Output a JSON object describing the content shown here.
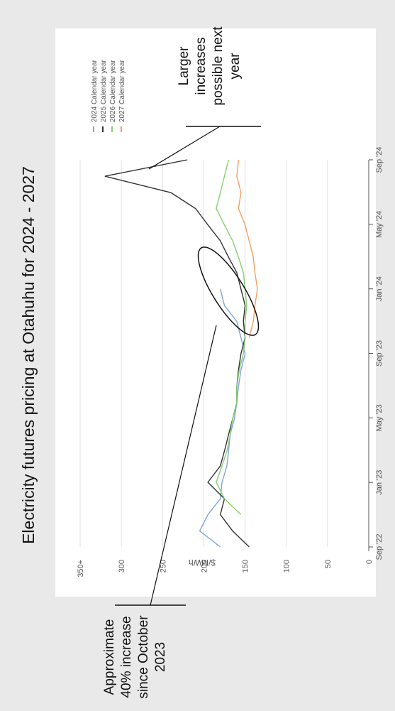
{
  "slide": {
    "title": "Electricity futures pricing at Otahuhu for 2024 - 2027",
    "annotation_right": [
      "Larger",
      "increases",
      "possible next",
      "year"
    ],
    "annotation_left": [
      "Approximate",
      "40% increase",
      "since October",
      "2023"
    ]
  },
  "chart_data": {
    "type": "line",
    "title": "",
    "xlabel": "",
    "ylabel": "$/MWh",
    "x_ticks": [
      "Sep '22",
      "Jan '23",
      "May '23",
      "Sep '23",
      "Jan '24",
      "May '24",
      "Sep '24"
    ],
    "y_ticks": [
      "0",
      "50",
      "100",
      "150",
      "200",
      "250",
      "300",
      "350+"
    ],
    "ylim": [
      0,
      350
    ],
    "xlim": [
      "2022-09-01",
      "2024-09-01"
    ],
    "legend_position": "top-right",
    "legend": [
      {
        "label": "2024 Calendar year",
        "color": "#7ea6d8"
      },
      {
        "label": "2025 Calendar year",
        "color": "#333333"
      },
      {
        "label": "2026 Calendar year",
        "color": "#86d06e"
      },
      {
        "label": "2027 Calendar year",
        "color": "#f0a060"
      }
    ],
    "series": [
      {
        "name": "2024 Calendar year",
        "color": "#7ea6d8",
        "x": [
          "2022-09-01",
          "2022-10-01",
          "2022-11-01",
          "2022-12-01",
          "2023-01-01",
          "2023-02-01",
          "2023-03-01",
          "2023-04-01",
          "2023-05-01",
          "2023-06-01",
          "2023-07-01",
          "2023-08-01",
          "2023-09-01",
          "2023-10-01",
          "2023-11-01",
          "2023-12-01",
          "2024-01-01"
        ],
        "values": [
          180,
          205,
          195,
          180,
          178,
          172,
          170,
          168,
          163,
          160,
          158,
          155,
          150,
          155,
          160,
          175,
          180
        ]
      },
      {
        "name": "2025 Calendar year",
        "color": "#333333",
        "x": [
          "2022-09-01",
          "2022-10-01",
          "2022-11-01",
          "2022-12-01",
          "2023-01-01",
          "2023-02-01",
          "2023-03-01",
          "2023-04-01",
          "2023-05-01",
          "2023-06-01",
          "2023-07-01",
          "2023-08-01",
          "2023-09-01",
          "2023-10-01",
          "2023-11-01",
          "2023-12-01",
          "2024-01-01",
          "2024-02-01",
          "2024-03-01",
          "2024-04-01",
          "2024-05-01",
          "2024-06-01",
          "2024-07-01",
          "2024-08-01",
          "2024-09-01"
        ],
        "values": [
          145,
          165,
          180,
          175,
          195,
          180,
          175,
          170,
          165,
          160,
          160,
          158,
          155,
          150,
          152,
          150,
          155,
          160,
          170,
          180,
          195,
          210,
          240,
          320,
          220
        ]
      },
      {
        "name": "2026 Calendar year",
        "color": "#86d06e",
        "x": [
          "2022-11-01",
          "2022-12-01",
          "2023-01-01",
          "2023-02-01",
          "2023-03-01",
          "2023-04-01",
          "2023-05-01",
          "2023-06-01",
          "2023-07-01",
          "2023-08-01",
          "2023-09-01",
          "2023-10-01",
          "2023-11-01",
          "2023-12-01",
          "2024-01-01",
          "2024-02-01",
          "2024-03-01",
          "2024-04-01",
          "2024-05-01",
          "2024-06-01",
          "2024-07-01",
          "2024-08-01",
          "2024-09-01"
        ],
        "values": [
          155,
          175,
          185,
          178,
          172,
          168,
          165,
          160,
          160,
          157,
          152,
          150,
          150,
          148,
          150,
          152,
          158,
          165,
          175,
          185,
          180,
          175,
          170
        ]
      },
      {
        "name": "2027 Calendar year",
        "color": "#f0a060",
        "x": [
          "2023-10-01",
          "2023-11-01",
          "2023-12-01",
          "2024-01-01",
          "2024-02-01",
          "2024-03-01",
          "2024-04-01",
          "2024-05-01",
          "2024-06-01",
          "2024-07-01",
          "2024-08-01",
          "2024-09-01"
        ],
        "values": [
          145,
          140,
          138,
          135,
          138,
          140,
          145,
          150,
          158,
          155,
          160,
          158
        ]
      }
    ]
  }
}
